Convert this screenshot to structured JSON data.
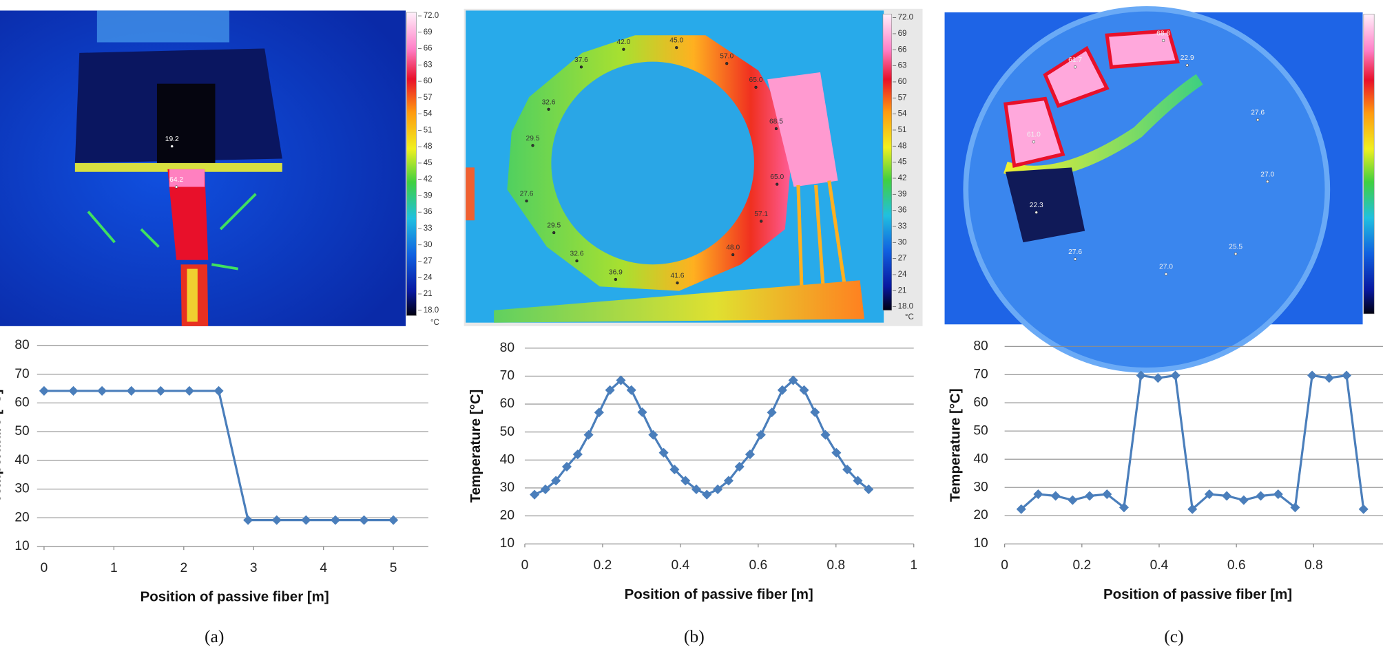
{
  "chart_data": [
    {
      "type": "line",
      "y_label": "Temperature [°C]",
      "x_label": "Position of passive fiber [m]",
      "caption": "(a)",
      "x": [
        0,
        0.42,
        0.83,
        1.25,
        1.67,
        2.08,
        2.5,
        2.92,
        3.33,
        3.75,
        4.17,
        4.58,
        5
      ],
      "series": [
        {
          "color": "#4a7ebb",
          "values": [
            64.2,
            64.2,
            64.2,
            64.2,
            64.2,
            64.2,
            64.2,
            19.2,
            19.2,
            19.2,
            19.2,
            19.2,
            19.2
          ]
        }
      ],
      "xlim": [
        -0.1,
        5.5
      ],
      "ylim": [
        10,
        80
      ],
      "xticks": [
        0,
        1,
        2,
        3,
        4,
        5
      ],
      "yticks": [
        10,
        20,
        30,
        40,
        50,
        60,
        70,
        80
      ],
      "grid": true
    },
    {
      "type": "line",
      "y_label": "Temperature [°C]",
      "x_label": "Position of passive fiber [m]",
      "caption": "(b)",
      "x": [
        0.025,
        0.053,
        0.08,
        0.108,
        0.136,
        0.164,
        0.191,
        0.219,
        0.247,
        0.274,
        0.302,
        0.33,
        0.357,
        0.385,
        0.413,
        0.441,
        0.468,
        0.496,
        0.524,
        0.552,
        0.579,
        0.607,
        0.635,
        0.662,
        0.69,
        0.718,
        0.746,
        0.773,
        0.801,
        0.829,
        0.856,
        0.884
      ],
      "series": [
        {
          "color": "#4a7ebb",
          "values": [
            27.6,
            29.5,
            32.6,
            37.6,
            42.0,
            49.0,
            57.0,
            65.0,
            68.5,
            65.0,
            57.1,
            49.0,
            42.6,
            36.6,
            32.6,
            29.5,
            27.6,
            29.5,
            32.6,
            37.6,
            42.0,
            49.0,
            57.0,
            65.0,
            68.5,
            65.0,
            57.1,
            49.0,
            42.6,
            36.6,
            32.6,
            29.5
          ]
        }
      ],
      "xlim": [
        0,
        1
      ],
      "ylim": [
        10,
        80
      ],
      "xticks": [
        0,
        0.2,
        0.4,
        0.6,
        0.8,
        1
      ],
      "yticks": [
        10,
        20,
        30,
        40,
        50,
        60,
        70,
        80
      ],
      "grid": true
    },
    {
      "type": "line",
      "y_label": "Temperature [°C]",
      "x_label": "Position of passive fiber [m]",
      "caption": "(c)",
      "x": [
        0.043,
        0.087,
        0.132,
        0.176,
        0.22,
        0.265,
        0.309,
        0.353,
        0.397,
        0.442,
        0.486,
        0.53,
        0.575,
        0.619,
        0.663,
        0.708,
        0.752,
        0.796,
        0.84,
        0.885,
        0.929
      ],
      "series": [
        {
          "color": "#4a7ebb",
          "values": [
            22.3,
            27.6,
            27.0,
            25.5,
            27.0,
            27.6,
            22.9,
            69.7,
            68.8,
            69.7,
            22.3,
            27.6,
            27.0,
            25.5,
            27.0,
            27.6,
            22.9,
            69.7,
            68.8,
            69.7,
            22.3
          ]
        }
      ],
      "xlim": [
        0,
        1
      ],
      "ylim": [
        10,
        80
      ],
      "xticks": [
        0,
        0.2,
        0.4,
        0.6,
        0.8
      ],
      "yticks": [
        10,
        20,
        30,
        40,
        50,
        60,
        70,
        80
      ],
      "grid": true
    }
  ],
  "thermal_images": [
    {
      "colorbar_labels": [
        "72.0",
        "69",
        "66",
        "63",
        "60",
        "57",
        "54",
        "51",
        "48",
        "45",
        "42",
        "39",
        "36",
        "33",
        "30",
        "27",
        "24",
        "21",
        "18.0"
      ],
      "unit": "°C",
      "spots": [
        "19.2",
        "64.2"
      ]
    },
    {
      "colorbar_labels": [
        "72.0",
        "69",
        "66",
        "63",
        "60",
        "57",
        "54",
        "51",
        "48",
        "45",
        "42",
        "39",
        "36",
        "33",
        "30",
        "27",
        "24",
        "21",
        "18.0"
      ],
      "unit": "°C",
      "spots": [
        "37.6",
        "42.0",
        "45.0",
        "57.0",
        "65.0",
        "68.5",
        "65.0",
        "57.1",
        "48.0",
        "41.6",
        "36.9",
        "32.6",
        "29.5",
        "27.6",
        "29.5",
        "32.6"
      ]
    },
    {
      "spots": [
        "68.8",
        "61.7",
        "22.9",
        "61.0",
        "27.6",
        "27.0",
        "22.3",
        "27.6",
        "27.0",
        "25.5"
      ]
    }
  ]
}
